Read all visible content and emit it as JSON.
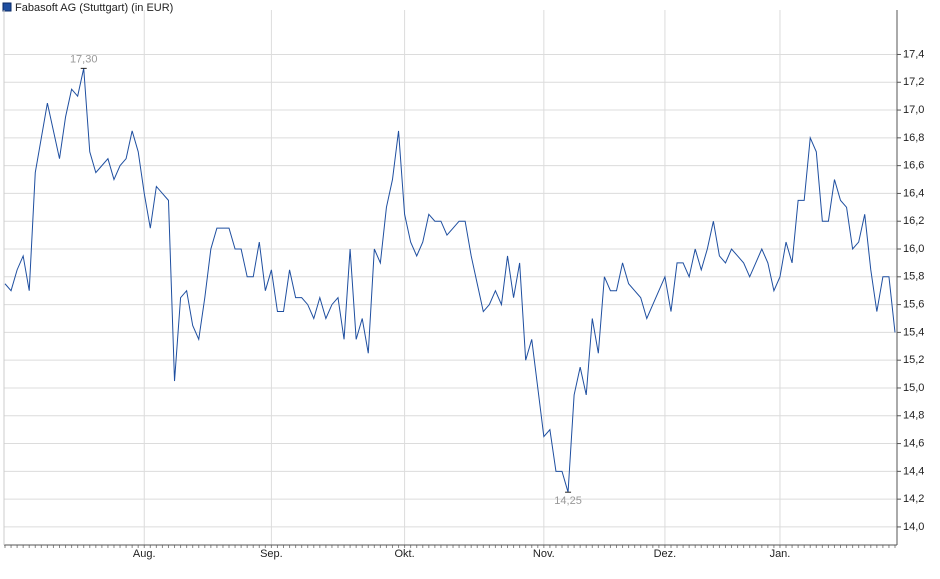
{
  "chart_data": {
    "type": "line",
    "categories": [
      null,
      null,
      null,
      null,
      null,
      null,
      null,
      null,
      null,
      null,
      null,
      null,
      null,
      null,
      null,
      null,
      null,
      null,
      null,
      null,
      null,
      null,
      null,
      "Aug.",
      null,
      null,
      null,
      null,
      null,
      null,
      null,
      null,
      null,
      null,
      null,
      null,
      null,
      null,
      null,
      null,
      null,
      null,
      null,
      null,
      "Sep.",
      null,
      null,
      null,
      null,
      null,
      null,
      null,
      null,
      null,
      null,
      null,
      null,
      null,
      null,
      null,
      null,
      null,
      null,
      null,
      null,
      null,
      "Okt.",
      null,
      null,
      null,
      null,
      null,
      null,
      null,
      null,
      null,
      null,
      null,
      null,
      null,
      null,
      null,
      null,
      null,
      null,
      null,
      null,
      null,
      null,
      "Nov.",
      null,
      null,
      null,
      null,
      null,
      null,
      null,
      null,
      null,
      null,
      null,
      null,
      null,
      null,
      null,
      null,
      null,
      null,
      null,
      "Dez.",
      null,
      null,
      null,
      null,
      null,
      null,
      null,
      null,
      null,
      null,
      null,
      null,
      null,
      null,
      null,
      null,
      null,
      null,
      "Jan.",
      null,
      null,
      null,
      null,
      null,
      null,
      null,
      null,
      null,
      null,
      null,
      null,
      null,
      null,
      null,
      null,
      null,
      null,
      null
    ],
    "series": [
      {
        "name": "Fabasoft AG (Stuttgart) (in EUR)",
        "color": "#1f4fa0",
        "values": [
          15.75,
          15.7,
          15.85,
          15.95,
          15.7,
          16.55,
          16.8,
          17.05,
          16.85,
          16.65,
          16.95,
          17.15,
          17.1,
          17.3,
          16.7,
          16.55,
          16.6,
          16.65,
          16.5,
          16.6,
          16.65,
          16.85,
          16.7,
          16.4,
          16.15,
          16.45,
          16.4,
          16.35,
          15.05,
          15.65,
          15.7,
          15.45,
          15.35,
          15.65,
          16.0,
          16.15,
          16.15,
          16.15,
          16.0,
          16.0,
          15.8,
          15.8,
          16.05,
          15.7,
          15.85,
          15.55,
          15.55,
          15.85,
          15.65,
          15.65,
          15.6,
          15.5,
          15.65,
          15.5,
          15.6,
          15.65,
          15.35,
          16.0,
          15.35,
          15.5,
          15.25,
          16.0,
          15.9,
          16.3,
          16.5,
          16.85,
          16.25,
          16.05,
          15.95,
          16.05,
          16.25,
          16.2,
          16.2,
          16.1,
          16.15,
          16.2,
          16.2,
          15.95,
          15.75,
          15.55,
          15.6,
          15.7,
          15.6,
          15.95,
          15.65,
          15.9,
          15.2,
          15.35,
          15.0,
          14.65,
          14.7,
          14.4,
          14.4,
          14.25,
          14.95,
          15.15,
          14.95,
          15.5,
          15.25,
          15.8,
          15.7,
          15.7,
          15.9,
          15.75,
          15.7,
          15.65,
          15.5,
          15.6,
          15.7,
          15.8,
          15.55,
          15.9,
          15.9,
          15.8,
          16.0,
          15.85,
          16.0,
          16.2,
          15.95,
          15.9,
          16.0,
          15.95,
          15.9,
          15.8,
          15.9,
          16.0,
          15.9,
          15.7,
          15.8,
          16.05,
          15.9,
          16.35,
          16.35,
          16.8,
          16.7,
          16.2,
          16.2,
          16.5,
          16.35,
          16.3,
          16.0,
          16.05,
          16.25,
          15.85,
          15.55,
          15.8,
          15.8,
          15.4
        ]
      }
    ],
    "annotations": [
      "17,30",
      "14,25"
    ],
    "ylim": [
      13.87,
      17.72
    ],
    "yticks": [
      {
        "value": 14.0,
        "label": "14,0"
      },
      {
        "value": 14.2,
        "label": "14,2"
      },
      {
        "value": 14.4,
        "label": "14,4"
      },
      {
        "value": 14.6,
        "label": "14,6"
      },
      {
        "value": 14.8,
        "label": "14,8"
      },
      {
        "value": 15.0,
        "label": "15,0"
      },
      {
        "value": 15.2,
        "label": "15,2"
      },
      {
        "value": 15.4,
        "label": "15,4"
      },
      {
        "value": 15.6,
        "label": "15,6"
      },
      {
        "value": 15.8,
        "label": "15,8"
      },
      {
        "value": 16.0,
        "label": "16,0"
      },
      {
        "value": 16.2,
        "label": "16,2"
      },
      {
        "value": 16.4,
        "label": "16,4"
      },
      {
        "value": 16.6,
        "label": "16,6"
      },
      {
        "value": 16.8,
        "label": "16,8"
      },
      {
        "value": 17.0,
        "label": "17,0"
      },
      {
        "value": 17.2,
        "label": "17,2"
      },
      {
        "value": 17.4,
        "label": "17,4"
      }
    ],
    "grid": true
  }
}
